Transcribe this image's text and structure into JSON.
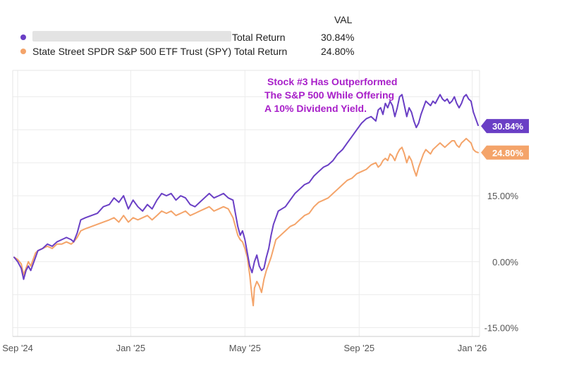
{
  "chart_data": {
    "type": "line",
    "legend_header": "VAL",
    "legend_position": "top-left",
    "grid": true,
    "x_axis_ticks": [
      "Sep '24",
      "Jan '25",
      "May '25",
      "Sep '25",
      "Jan '26"
    ],
    "y_axis_ticks": [
      "15.00%",
      "0.00%",
      "-15.00%"
    ],
    "y_unit": "%",
    "ylim": [
      -17,
      43.5
    ],
    "annotation_lines": [
      "Stock #3 Has Outperformed",
      "The S&P 500 While Offering",
      "A 10% Dividend Yield."
    ],
    "annotation_color": "#a81fc9",
    "series": [
      {
        "name": "████████████████████ Total Return",
        "name_redacted": true,
        "name_visible": "Total Return",
        "color": "#6a3fc5",
        "final_value": 30.84,
        "final_label": "30.84%",
        "points": [
          [
            0,
            1.0
          ],
          [
            3,
            0.0
          ],
          [
            6,
            -1.5
          ],
          [
            8,
            -4.0
          ],
          [
            10,
            -2.0
          ],
          [
            12,
            -1.0
          ],
          [
            14,
            -2.0
          ],
          [
            16,
            -0.5
          ],
          [
            18,
            1.0
          ],
          [
            20,
            2.5
          ],
          [
            24,
            3.0
          ],
          [
            28,
            4.0
          ],
          [
            32,
            3.5
          ],
          [
            36,
            4.5
          ],
          [
            40,
            5.0
          ],
          [
            44,
            5.5
          ],
          [
            48,
            5.0
          ],
          [
            50,
            4.5
          ],
          [
            53,
            6.5
          ],
          [
            56,
            9.5
          ],
          [
            60,
            10.0
          ],
          [
            65,
            10.5
          ],
          [
            70,
            11.0
          ],
          [
            75,
            12.5
          ],
          [
            80,
            13.0
          ],
          [
            84,
            14.5
          ],
          [
            88,
            13.5
          ],
          [
            92,
            15.0
          ],
          [
            96,
            12.0
          ],
          [
            100,
            14.0
          ],
          [
            104,
            12.5
          ],
          [
            108,
            11.5
          ],
          [
            112,
            13.0
          ],
          [
            116,
            12.0
          ],
          [
            120,
            14.0
          ],
          [
            124,
            15.5
          ],
          [
            128,
            15.0
          ],
          [
            132,
            15.5
          ],
          [
            136,
            14.0
          ],
          [
            140,
            15.0
          ],
          [
            144,
            14.5
          ],
          [
            148,
            13.0
          ],
          [
            152,
            12.5
          ],
          [
            156,
            13.5
          ],
          [
            160,
            14.5
          ],
          [
            164,
            15.5
          ],
          [
            168,
            14.5
          ],
          [
            172,
            15.0
          ],
          [
            176,
            15.5
          ],
          [
            180,
            14.5
          ],
          [
            184,
            14.0
          ],
          [
            186,
            11.0
          ],
          [
            188,
            8.0
          ],
          [
            190,
            6.0
          ],
          [
            192,
            7.0
          ],
          [
            194,
            5.0
          ],
          [
            196,
            2.0
          ],
          [
            198,
            -1.0
          ],
          [
            200,
            -2.5
          ],
          [
            202,
            0.0
          ],
          [
            204,
            1.5
          ],
          [
            206,
            -1.0
          ],
          [
            208,
            -2.0
          ],
          [
            210,
            -1.5
          ],
          [
            212,
            1.0
          ],
          [
            214,
            3.0
          ],
          [
            216,
            6.0
          ],
          [
            218,
            8.5
          ],
          [
            220,
            10.0
          ],
          [
            222,
            11.5
          ],
          [
            225,
            12.0
          ],
          [
            228,
            12.5
          ],
          [
            232,
            14.0
          ],
          [
            236,
            15.5
          ],
          [
            240,
            16.5
          ],
          [
            244,
            17.5
          ],
          [
            248,
            18.0
          ],
          [
            252,
            19.5
          ],
          [
            256,
            20.5
          ],
          [
            260,
            21.5
          ],
          [
            264,
            22.0
          ],
          [
            268,
            23.0
          ],
          [
            272,
            24.5
          ],
          [
            276,
            25.5
          ],
          [
            280,
            27.0
          ],
          [
            284,
            28.5
          ],
          [
            288,
            30.0
          ],
          [
            292,
            31.5
          ],
          [
            296,
            32.5
          ],
          [
            300,
            33.0
          ],
          [
            304,
            32.0
          ],
          [
            306,
            34.5
          ],
          [
            308,
            35.0
          ],
          [
            310,
            33.5
          ],
          [
            312,
            36.0
          ],
          [
            314,
            35.0
          ],
          [
            316,
            36.5
          ],
          [
            318,
            35.5
          ],
          [
            320,
            33.0
          ],
          [
            322,
            35.0
          ],
          [
            324,
            37.5
          ],
          [
            326,
            38.0
          ],
          [
            328,
            35.5
          ],
          [
            330,
            33.0
          ],
          [
            332,
            35.0
          ],
          [
            334,
            34.0
          ],
          [
            336,
            32.0
          ],
          [
            338,
            30.5
          ],
          [
            340,
            31.5
          ],
          [
            342,
            33.5
          ],
          [
            344,
            35.0
          ],
          [
            346,
            36.5
          ],
          [
            348,
            36.0
          ],
          [
            350,
            35.5
          ],
          [
            352,
            36.5
          ],
          [
            354,
            36.0
          ],
          [
            356,
            37.0
          ],
          [
            358,
            38.0
          ],
          [
            360,
            37.0
          ],
          [
            362,
            36.5
          ],
          [
            364,
            37.0
          ],
          [
            366,
            36.0
          ],
          [
            368,
            36.5
          ],
          [
            370,
            37.5
          ],
          [
            372,
            36.0
          ],
          [
            374,
            35.0
          ],
          [
            376,
            36.0
          ],
          [
            378,
            37.5
          ],
          [
            380,
            38.0
          ],
          [
            382,
            37.0
          ],
          [
            384,
            36.5
          ],
          [
            386,
            34.0
          ],
          [
            388,
            32.5
          ],
          [
            390,
            31.0
          ]
        ]
      },
      {
        "name": "State Street SPDR S&P 500 ETF Trust (SPY) Total Return",
        "color": "#f4a46a",
        "final_value": 24.8,
        "final_label": "24.80%",
        "points": [
          [
            0,
            1.0
          ],
          [
            3,
            0.5
          ],
          [
            6,
            -0.5
          ],
          [
            8,
            -3.0
          ],
          [
            10,
            -1.5
          ],
          [
            12,
            0.0
          ],
          [
            14,
            -1.0
          ],
          [
            16,
            0.5
          ],
          [
            18,
            2.0
          ],
          [
            20,
            2.5
          ],
          [
            24,
            3.0
          ],
          [
            28,
            3.5
          ],
          [
            32,
            3.0
          ],
          [
            36,
            4.0
          ],
          [
            40,
            4.0
          ],
          [
            44,
            4.5
          ],
          [
            48,
            4.0
          ],
          [
            50,
            4.5
          ],
          [
            53,
            5.5
          ],
          [
            56,
            7.0
          ],
          [
            60,
            7.5
          ],
          [
            65,
            8.0
          ],
          [
            70,
            8.5
          ],
          [
            75,
            9.0
          ],
          [
            80,
            9.5
          ],
          [
            84,
            10.0
          ],
          [
            88,
            9.0
          ],
          [
            92,
            10.5
          ],
          [
            96,
            9.0
          ],
          [
            100,
            10.0
          ],
          [
            104,
            9.5
          ],
          [
            108,
            10.0
          ],
          [
            112,
            10.5
          ],
          [
            116,
            9.5
          ],
          [
            120,
            10.5
          ],
          [
            124,
            11.5
          ],
          [
            128,
            11.0
          ],
          [
            132,
            11.5
          ],
          [
            136,
            10.5
          ],
          [
            140,
            11.0
          ],
          [
            144,
            11.5
          ],
          [
            148,
            10.5
          ],
          [
            152,
            11.0
          ],
          [
            156,
            11.5
          ],
          [
            160,
            12.0
          ],
          [
            164,
            12.5
          ],
          [
            168,
            11.5
          ],
          [
            172,
            12.0
          ],
          [
            176,
            12.5
          ],
          [
            180,
            12.0
          ],
          [
            184,
            10.0
          ],
          [
            186,
            8.0
          ],
          [
            188,
            6.0
          ],
          [
            190,
            5.0
          ],
          [
            192,
            4.5
          ],
          [
            194,
            3.0
          ],
          [
            196,
            1.0
          ],
          [
            198,
            -3.0
          ],
          [
            200,
            -8.0
          ],
          [
            201,
            -10.0
          ],
          [
            202,
            -6.0
          ],
          [
            204,
            -4.5
          ],
          [
            206,
            -5.5
          ],
          [
            208,
            -7.0
          ],
          [
            210,
            -4.0
          ],
          [
            212,
            -2.0
          ],
          [
            214,
            -0.5
          ],
          [
            216,
            1.0
          ],
          [
            218,
            3.0
          ],
          [
            220,
            5.0
          ],
          [
            224,
            6.0
          ],
          [
            228,
            7.0
          ],
          [
            232,
            8.0
          ],
          [
            236,
            8.5
          ],
          [
            240,
            9.5
          ],
          [
            244,
            10.5
          ],
          [
            248,
            11.0
          ],
          [
            252,
            12.5
          ],
          [
            256,
            13.5
          ],
          [
            260,
            14.0
          ],
          [
            264,
            14.5
          ],
          [
            268,
            15.5
          ],
          [
            272,
            16.5
          ],
          [
            276,
            17.5
          ],
          [
            280,
            18.5
          ],
          [
            284,
            19.0
          ],
          [
            288,
            20.0
          ],
          [
            292,
            20.5
          ],
          [
            296,
            21.0
          ],
          [
            300,
            22.0
          ],
          [
            304,
            22.5
          ],
          [
            306,
            21.5
          ],
          [
            308,
            22.0
          ],
          [
            310,
            23.0
          ],
          [
            312,
            23.5
          ],
          [
            314,
            23.0
          ],
          [
            316,
            24.5
          ],
          [
            318,
            24.0
          ],
          [
            320,
            23.0
          ],
          [
            322,
            24.5
          ],
          [
            324,
            25.5
          ],
          [
            326,
            26.0
          ],
          [
            328,
            24.5
          ],
          [
            330,
            22.5
          ],
          [
            332,
            24.0
          ],
          [
            334,
            23.0
          ],
          [
            336,
            21.0
          ],
          [
            338,
            19.5
          ],
          [
            340,
            21.5
          ],
          [
            342,
            23.0
          ],
          [
            344,
            24.5
          ],
          [
            346,
            25.5
          ],
          [
            348,
            25.0
          ],
          [
            350,
            24.5
          ],
          [
            352,
            25.5
          ],
          [
            354,
            26.0
          ],
          [
            356,
            26.5
          ],
          [
            358,
            27.0
          ],
          [
            360,
            26.5
          ],
          [
            362,
            26.0
          ],
          [
            364,
            26.5
          ],
          [
            366,
            27.0
          ],
          [
            368,
            27.5
          ],
          [
            370,
            27.5
          ],
          [
            372,
            26.5
          ],
          [
            374,
            26.0
          ],
          [
            376,
            27.0
          ],
          [
            378,
            27.5
          ],
          [
            380,
            28.0
          ],
          [
            382,
            27.5
          ],
          [
            384,
            27.0
          ],
          [
            386,
            25.5
          ],
          [
            388,
            25.0
          ],
          [
            390,
            24.8
          ]
        ]
      }
    ]
  }
}
